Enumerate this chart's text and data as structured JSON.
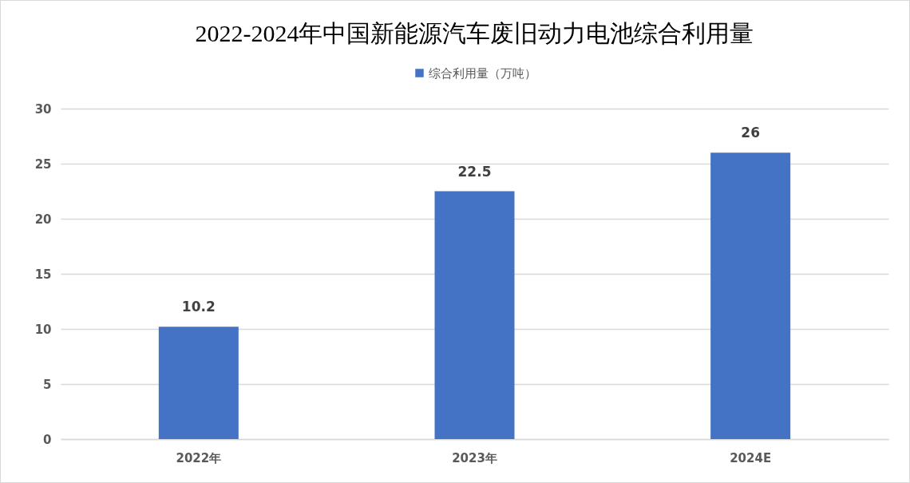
{
  "chart_data": {
    "type": "bar",
    "title": "2022-2024年中国新能源汽车废旧动力电池综合利用量",
    "categories": [
      "2022年",
      "2023年",
      "2024E"
    ],
    "series": [
      {
        "name": "综合利用量（万吨）",
        "color": "#4472c4",
        "values": [
          10.2,
          22.5,
          26
        ]
      }
    ],
    "ylim": [
      0,
      30
    ],
    "yticks": [
      0,
      5,
      10,
      15,
      20,
      25,
      30
    ],
    "grid": "y",
    "legend": "top",
    "data_labels": true
  }
}
